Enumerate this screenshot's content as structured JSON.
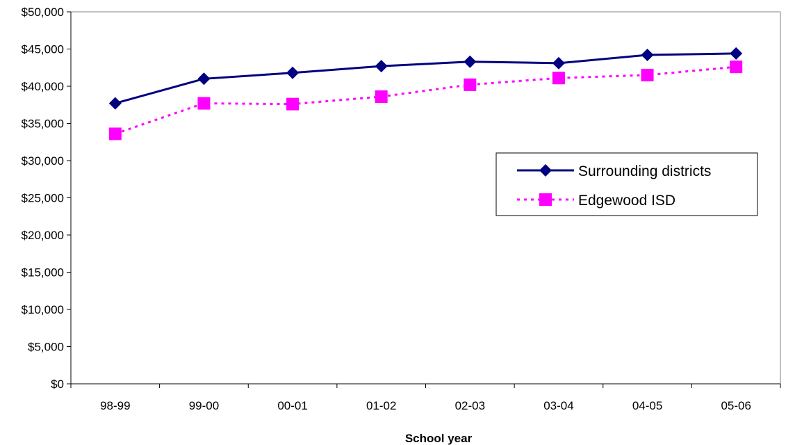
{
  "chart_data": {
    "type": "line",
    "title": "",
    "xlabel": "School year",
    "ylabel": "",
    "categories": [
      "98-99",
      "99-00",
      "00-01",
      "01-02",
      "02-03",
      "03-04",
      "04-05",
      "05-06"
    ],
    "ylim": [
      0,
      50000
    ],
    "yticks": [
      0,
      5000,
      10000,
      15000,
      20000,
      25000,
      30000,
      35000,
      40000,
      45000,
      50000
    ],
    "ytick_labels": [
      "$0",
      "$5,000",
      "$10,000",
      "$15,000",
      "$20,000",
      "$25,000",
      "$30,000",
      "$35,000",
      "$40,000",
      "$45,000",
      "$50,000"
    ],
    "grid": false,
    "legend_position": "right",
    "series": [
      {
        "name": "Surrounding districts",
        "values": [
          37700,
          41000,
          41800,
          42700,
          43300,
          43100,
          44200,
          44400
        ],
        "color": "#000080",
        "line_style": "solid",
        "marker": "diamond"
      },
      {
        "name": "Edgewood ISD",
        "values": [
          33600,
          37700,
          37600,
          38600,
          40200,
          41100,
          41500,
          42600
        ],
        "color": "#ff00ff",
        "line_style": "dotted",
        "marker": "square"
      }
    ]
  }
}
